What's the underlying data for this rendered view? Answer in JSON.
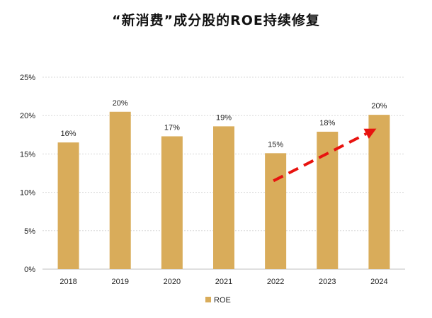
{
  "chart_data": {
    "type": "bar",
    "title": "“新消费”成分股的ROE持续修复",
    "categories": [
      "2018",
      "2019",
      "2020",
      "2021",
      "2022",
      "2023",
      "2024"
    ],
    "series": [
      {
        "name": "ROE",
        "values": [
          16,
          20,
          17,
          19,
          15,
          18,
          20
        ],
        "data_labels": [
          "16%",
          "20%",
          "17%",
          "19%",
          "15%",
          "18%",
          "20%"
        ]
      }
    ],
    "bar_heights_read": [
      16.5,
      20.5,
      17.3,
      18.6,
      15.1,
      17.9,
      20.1
    ],
    "ylim": [
      0,
      25
    ],
    "yticks": [
      "0%",
      "5%",
      "10%",
      "15%",
      "20%",
      "25%"
    ],
    "xlabel": "",
    "ylabel": "",
    "grid": true,
    "legend_position": "bottom-center",
    "annotation": {
      "type": "trend-arrow",
      "style": "dashed",
      "from_category": "2022",
      "to_category": "2024",
      "from_value": 11.5,
      "to_value": 18.3
    },
    "colors": {
      "bar": "#D9AC5A",
      "grid": "#D9D9D9",
      "arrow": "#E8130F"
    }
  }
}
